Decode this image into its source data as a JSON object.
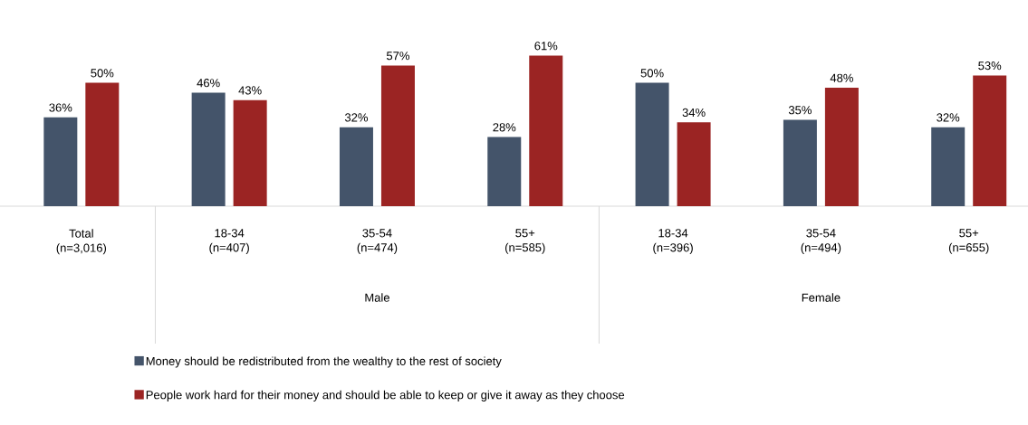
{
  "chart_data": {
    "type": "bar",
    "categories": [
      "Total (n=3,016)",
      "18-34 (n=407)",
      "35-54 (n=474)",
      "55+ (n=585)",
      "18-34 (n=396)",
      "35-54 (n=494)",
      "55+ (n=655)"
    ],
    "annotations": [
      "Male",
      "Female"
    ],
    "series": [
      {
        "name": "Money should be redistributed from the wealthy to the rest of society",
        "color": "#44546a",
        "values": [
          36,
          46,
          32,
          28,
          50,
          35,
          32
        ],
        "value_labels": [
          "36%",
          "46%",
          "32%",
          "28%",
          "50%",
          "35%",
          "32%"
        ]
      },
      {
        "name": "People work hard for their money and should be able to keep or give it away as they choose",
        "color": "#9b2423",
        "values": [
          50,
          43,
          57,
          61,
          34,
          48,
          53
        ],
        "value_labels": [
          "50%",
          "43%",
          "57%",
          "61%",
          "34%",
          "48%",
          "53%"
        ]
      }
    ],
    "legend": "bottom"
  }
}
